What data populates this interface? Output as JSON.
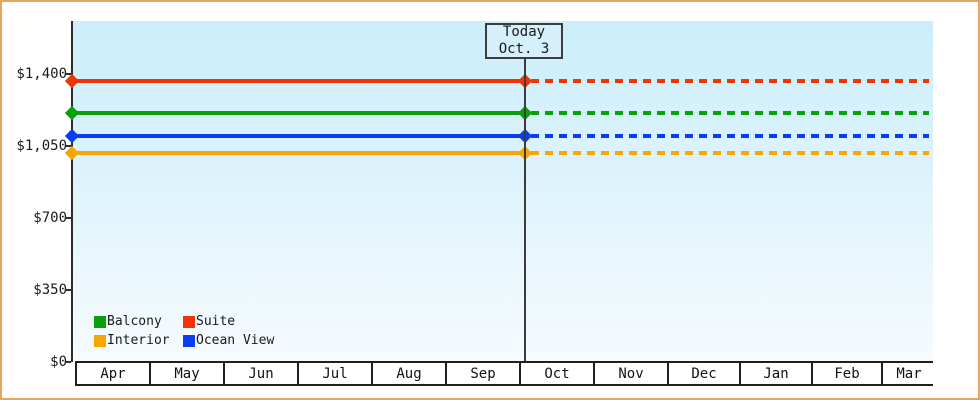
{
  "frame": {
    "border_color": "#e9a45b"
  },
  "today_box": {
    "line1": "Today",
    "line2": "Oct. 3"
  },
  "chart_data": {
    "type": "line",
    "title": "",
    "xlabel": "",
    "ylabel": "",
    "x_categories": [
      "Apr",
      "May",
      "Jun",
      "Jul",
      "Aug",
      "Sep",
      "Oct",
      "Nov",
      "Dec",
      "Jan",
      "Feb",
      "Mar"
    ],
    "y_ticks": [
      {
        "label": "$1,400",
        "value": 1400
      },
      {
        "label": "$1,050",
        "value": 1050
      },
      {
        "label": "$700",
        "value": 700
      },
      {
        "label": "$350",
        "value": 350
      },
      {
        "label": "$0",
        "value": 0
      }
    ],
    "ylim": [
      0,
      1660
    ],
    "grid": false,
    "legend_position": "inside-bottom-left",
    "annotation": {
      "label": "Today Oct. 3",
      "x_category": "Oct",
      "x_day": 3
    },
    "series": [
      {
        "name": "Suite",
        "color": "#f23305",
        "value": 1365,
        "pattern": "solid until Oct 3, dashed after"
      },
      {
        "name": "Balcony",
        "color": "#0aa00a",
        "value": 1210,
        "pattern": "solid until Oct 3, dashed after"
      },
      {
        "name": "Ocean View",
        "color": "#0a3cf0",
        "value": 1095,
        "pattern": "solid until Oct 3, dashed after"
      },
      {
        "name": "Interior",
        "color": "#f7a600",
        "value": 1015,
        "pattern": "solid until Oct 3, dashed after"
      }
    ],
    "legend_order": [
      "Balcony",
      "Suite",
      "Interior",
      "Ocean View"
    ],
    "values_note": "flat lines; dollar values estimated from axis position"
  }
}
